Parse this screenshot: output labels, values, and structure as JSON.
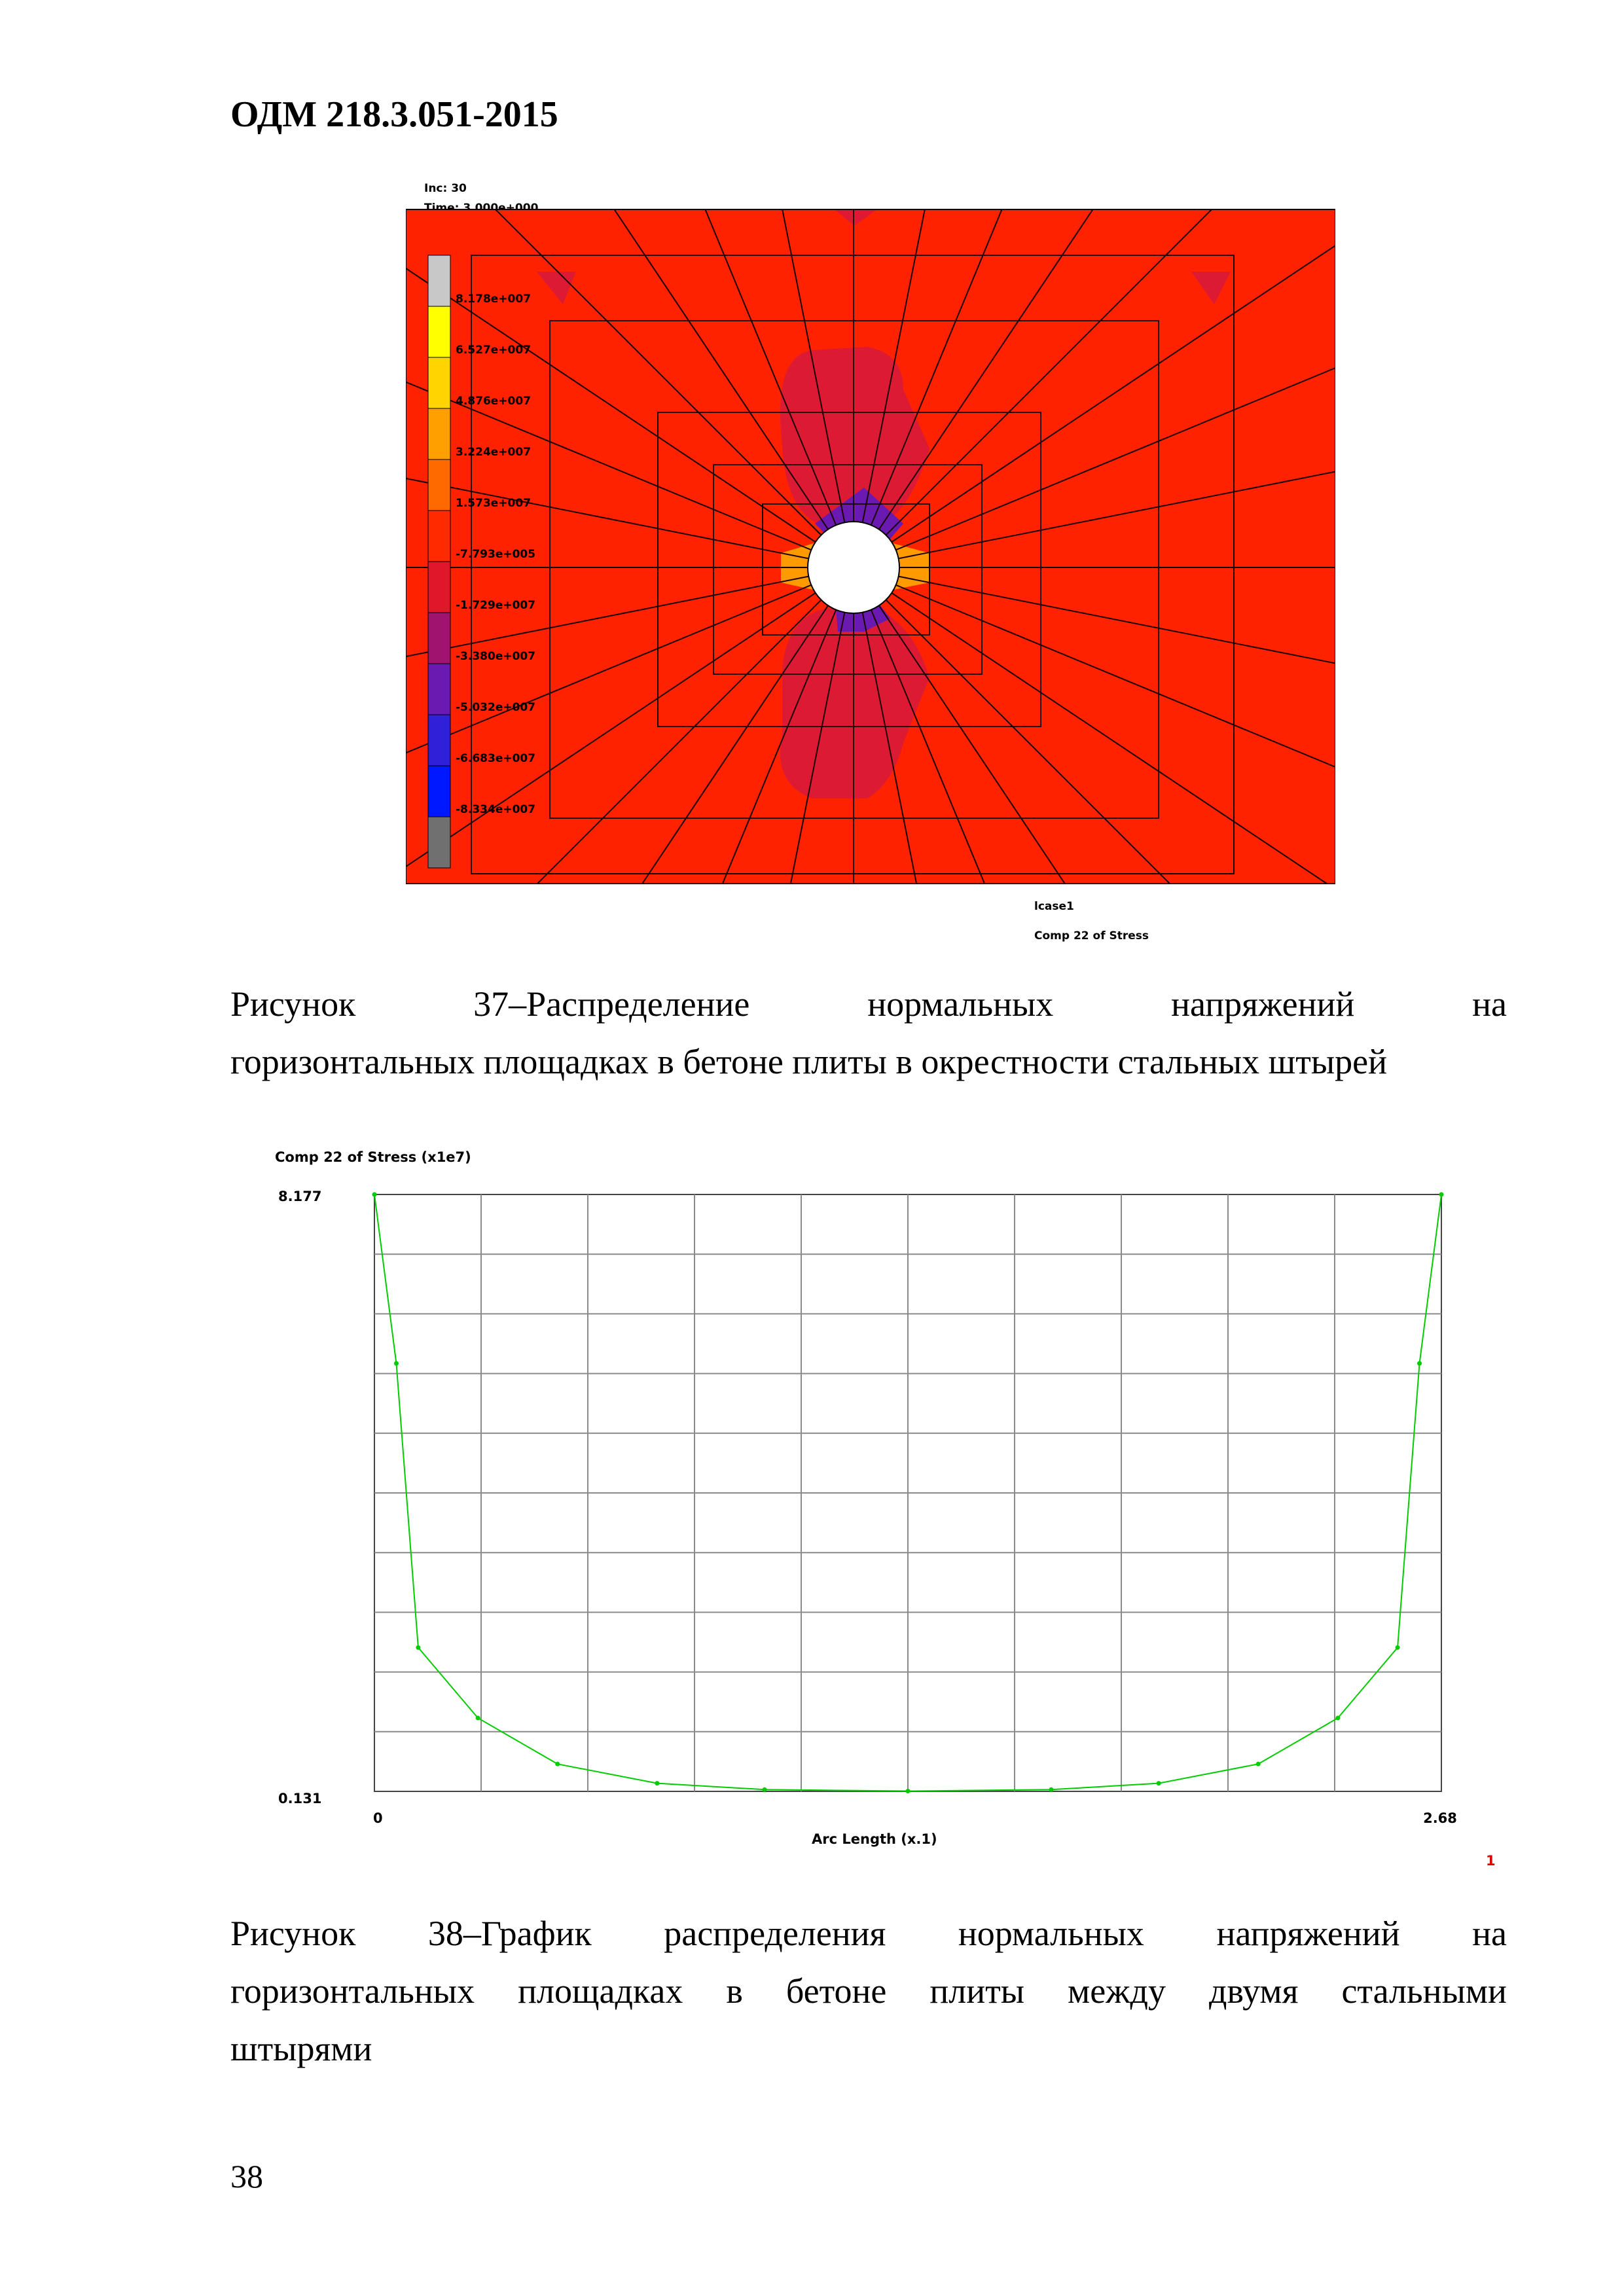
{
  "header": {
    "doc_code": "ОДМ 218.3.051-2015"
  },
  "figure37": {
    "inc_label": "Inc:  30",
    "time_label": "Time:  3.000e+000",
    "legend_values": [
      "8.178e+007",
      "6.527e+007",
      "4.876e+007",
      "3.224e+007",
      "1.573e+007",
      "-7.793e+005",
      "-1.729e+007",
      "-3.380e+007",
      "-5.032e+007",
      "-6.683e+007",
      "-8.334e+007"
    ],
    "legend_colors": [
      "#c8c8c8",
      "#ffff00",
      "#ffd400",
      "#ffa000",
      "#ff6a00",
      "#ff2a00",
      "#e0162a",
      "#a01470",
      "#6a1ab0",
      "#3020d8",
      "#0018ff",
      "#707070"
    ],
    "loadcase_label": "lcase1",
    "component_label": "Comp 22 of Stress",
    "colors": {
      "background": "#ff2200",
      "lobe": "#dd1a33",
      "hole": "#ffffff"
    }
  },
  "caption37": {
    "line1_words": [
      "Рисунок",
      "37–Распределение",
      "нормальных",
      "напряжений",
      "на"
    ],
    "line2": "горизонтальных площадках в бетоне плиты в окрестности стальных штырей"
  },
  "chart_data": {
    "type": "line",
    "title": "Comp 22 of Stress (x1e7)",
    "xlabel": "Arc Length (x.1)",
    "ylabel": "",
    "xlim": [
      0,
      2.68
    ],
    "ylim": [
      0.131,
      8.177
    ],
    "x_tick_labels": [
      "0",
      "2.68"
    ],
    "y_tick_labels": [
      "8.177",
      "0.131"
    ],
    "grid": true,
    "series": [
      {
        "name": "1",
        "color": "#00cc00",
        "x": [
          0,
          0.055,
          0.11,
          0.26,
          0.46,
          0.71,
          0.98,
          1.34,
          1.7,
          1.97,
          2.22,
          2.42,
          2.57,
          2.625,
          2.68
        ],
        "y": [
          8.177,
          5.9,
          2.07,
          1.12,
          0.5,
          0.24,
          0.155,
          0.135,
          0.155,
          0.24,
          0.5,
          1.12,
          2.07,
          5.9,
          8.177
        ]
      }
    ],
    "curve_label": "1"
  },
  "caption38": {
    "line1_words": [
      "Рисунок",
      "38–График",
      "распределения",
      "нормальных",
      "напряжений",
      "на"
    ],
    "line2_words": [
      "горизонтальных",
      "площадках",
      "в",
      "бетоне",
      "плиты",
      "между",
      "двумя",
      "стальными"
    ],
    "line3": "штырями"
  },
  "footer": {
    "page_number": "38"
  }
}
